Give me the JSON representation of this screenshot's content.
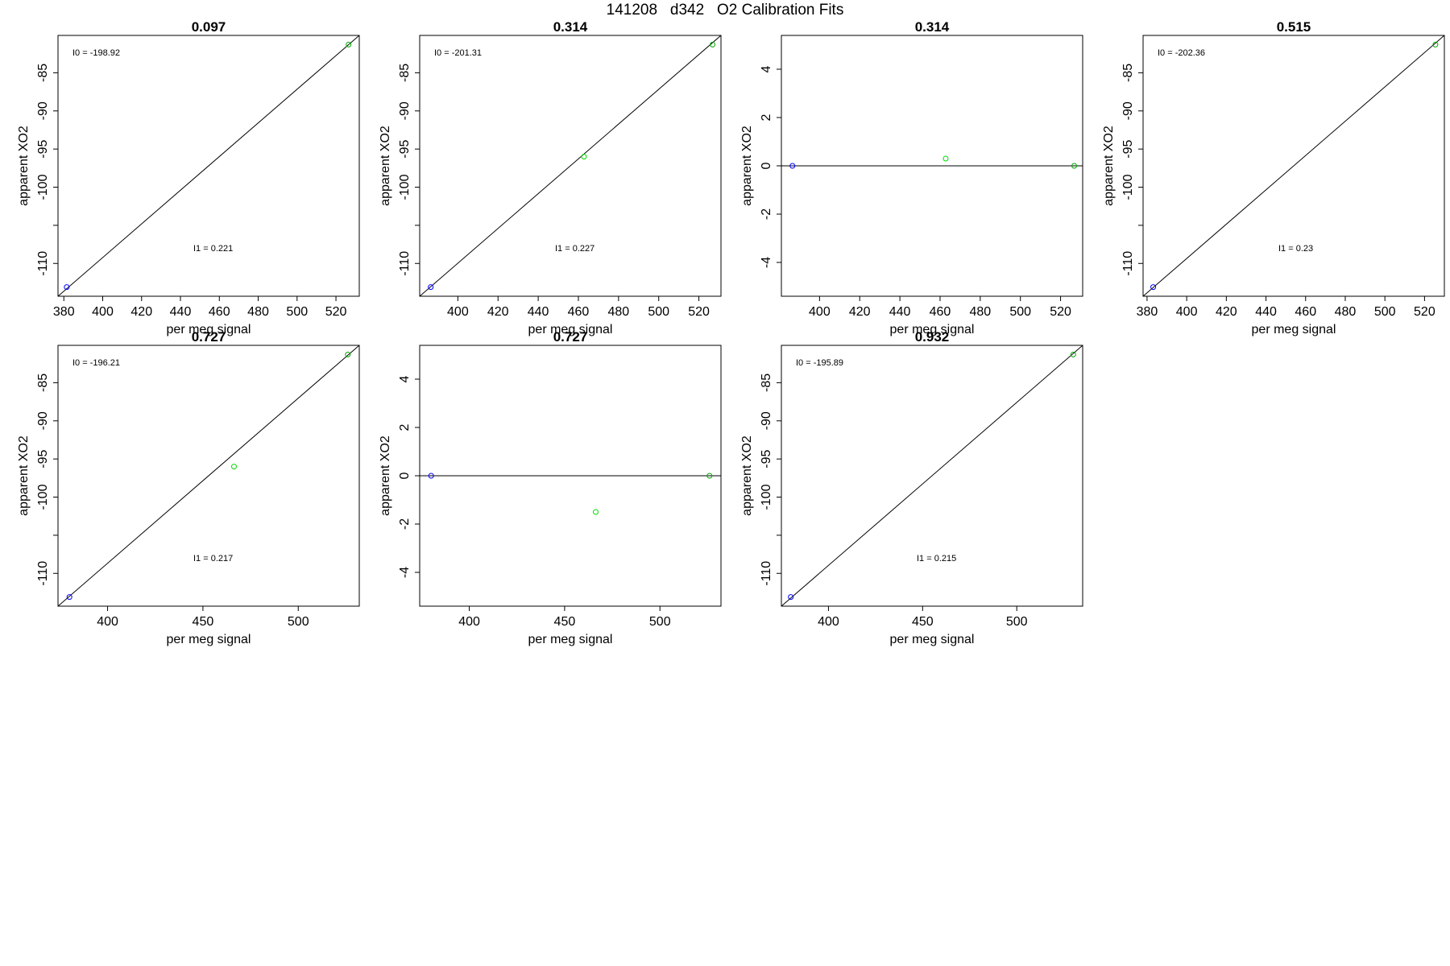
{
  "page_title": "141208   d342   O2 Calibration Fits",
  "chart_data": [
    {
      "type": "scatter",
      "kind": "fit",
      "title": "0.097",
      "xlabel": "per meg signal",
      "ylabel": "apparent XO2",
      "xlim": [
        377,
        532
      ],
      "ylim": [
        -114.3,
        -80.1
      ],
      "xticks": [
        380,
        400,
        420,
        440,
        460,
        480,
        500,
        520
      ],
      "yticks": [
        -85,
        -90,
        -95,
        -100,
        -105,
        -110
      ],
      "ytick_labels": [
        "-85",
        "-90",
        "-95",
        "-100",
        "",
        "-110"
      ],
      "points": [
        {
          "x": 381.5,
          "y": -113.1,
          "color": "#0000ff"
        },
        {
          "x": 526.5,
          "y": -81.3,
          "color": "#00aa00"
        }
      ],
      "line": {
        "from": [
          377,
          -114.3
        ],
        "to": [
          532,
          -80.1
        ]
      },
      "annotations": {
        "i0": "I0 =  -198.92",
        "i1": "I1 =  0.221"
      },
      "grid": false,
      "legend": "none"
    },
    {
      "type": "scatter",
      "kind": "fit",
      "title": "0.314",
      "xlabel": "per meg signal",
      "ylabel": "apparent XO2",
      "xlim": [
        381,
        531
      ],
      "ylim": [
        -114.3,
        -80.1
      ],
      "xticks": [
        400,
        420,
        440,
        460,
        480,
        500,
        520
      ],
      "yticks": [
        -85,
        -90,
        -95,
        -100,
        -105,
        -110
      ],
      "ytick_labels": [
        "-85",
        "-90",
        "-95",
        "-100",
        "",
        "-110"
      ],
      "points": [
        {
          "x": 386.5,
          "y": -113.1,
          "color": "#0000ff"
        },
        {
          "x": 462.8,
          "y": -96.0,
          "color": "#00dd00"
        },
        {
          "x": 526.8,
          "y": -81.3,
          "color": "#00aa00"
        }
      ],
      "line": {
        "from": [
          381,
          -114.3
        ],
        "to": [
          531,
          -80.1
        ]
      },
      "annotations": {
        "i0": "I0 =  -201.31",
        "i1": "I1 =  0.227"
      },
      "grid": false,
      "legend": "none"
    },
    {
      "type": "scatter",
      "kind": "residual",
      "title": "0.314",
      "xlabel": "per meg signal",
      "ylabel": "apparent XO2",
      "xlim": [
        381,
        531
      ],
      "ylim": [
        -5.4,
        5.4
      ],
      "xticks": [
        400,
        420,
        440,
        460,
        480,
        500,
        520
      ],
      "yticks": [
        4,
        2,
        0,
        -2,
        -4
      ],
      "ytick_labels": [
        "4",
        "2",
        "0",
        "-2",
        "-4"
      ],
      "points": [
        {
          "x": 386.5,
          "y": 0.0,
          "color": "#0000ff"
        },
        {
          "x": 462.8,
          "y": 0.3,
          "color": "#00dd00"
        },
        {
          "x": 526.8,
          "y": 0.0,
          "color": "#00aa00"
        }
      ],
      "hline": 0,
      "grid": false,
      "legend": "none"
    },
    {
      "type": "scatter",
      "kind": "fit",
      "title": "0.515",
      "xlabel": "per meg signal",
      "ylabel": "apparent XO2",
      "xlim": [
        378,
        530
      ],
      "ylim": [
        -114.3,
        -80.1
      ],
      "xticks": [
        380,
        400,
        420,
        440,
        460,
        480,
        500,
        520
      ],
      "yticks": [
        -85,
        -90,
        -95,
        -100,
        -105,
        -110
      ],
      "ytick_labels": [
        "-85",
        "-90",
        "-95",
        "-100",
        "",
        "-110"
      ],
      "points": [
        {
          "x": 383.1,
          "y": -113.1,
          "color": "#0000ff"
        },
        {
          "x": 525.5,
          "y": -81.3,
          "color": "#00aa00"
        }
      ],
      "line": {
        "from": [
          378,
          -114.3
        ],
        "to": [
          530,
          -80.1
        ]
      },
      "annotations": {
        "i0": "I0 =  -202.36",
        "i1": "I1 =  0.23"
      },
      "grid": false,
      "legend": "none"
    },
    {
      "type": "scatter",
      "kind": "fit",
      "title": "0.727",
      "xlabel": "per meg signal",
      "ylabel": "apparent XO2",
      "xlim": [
        374,
        532
      ],
      "ylim": [
        -114.3,
        -80.1
      ],
      "xticks": [
        400,
        450,
        500
      ],
      "yticks": [
        -85,
        -90,
        -95,
        -100,
        -105,
        -110
      ],
      "ytick_labels": [
        "-85",
        "-90",
        "-95",
        "-100",
        "",
        "-110"
      ],
      "points": [
        {
          "x": 380.0,
          "y": -113.1,
          "color": "#0000ff"
        },
        {
          "x": 466.3,
          "y": -96.0,
          "color": "#00dd00"
        },
        {
          "x": 526.0,
          "y": -81.3,
          "color": "#00aa00"
        }
      ],
      "line": {
        "from": [
          374,
          -114.3
        ],
        "to": [
          532,
          -80.1
        ]
      },
      "annotations": {
        "i0": "I0 =  -196.21",
        "i1": "I1 =  0.217"
      },
      "grid": false,
      "legend": "none"
    },
    {
      "type": "scatter",
      "kind": "residual",
      "title": "0.727",
      "xlabel": "per meg signal",
      "ylabel": "apparent XO2",
      "xlim": [
        374,
        532
      ],
      "ylim": [
        -5.4,
        5.4
      ],
      "xticks": [
        400,
        450,
        500
      ],
      "yticks": [
        4,
        2,
        0,
        -2,
        -4
      ],
      "ytick_labels": [
        "4",
        "2",
        "0",
        "-2",
        "-4"
      ],
      "points": [
        {
          "x": 380.0,
          "y": 0.0,
          "color": "#0000ff"
        },
        {
          "x": 466.3,
          "y": -1.5,
          "color": "#00dd00"
        },
        {
          "x": 526.0,
          "y": 0.0,
          "color": "#00aa00"
        }
      ],
      "hline": 0,
      "grid": false,
      "legend": "none"
    },
    {
      "type": "scatter",
      "kind": "fit",
      "title": "0.932",
      "xlabel": "per meg signal",
      "ylabel": "apparent XO2",
      "xlim": [
        375,
        535
      ],
      "ylim": [
        -114.3,
        -80.1
      ],
      "xticks": [
        400,
        450,
        500
      ],
      "yticks": [
        -85,
        -90,
        -95,
        -100,
        -105,
        -110
      ],
      "ytick_labels": [
        "-85",
        "-90",
        "-95",
        "-100",
        "",
        "-110"
      ],
      "points": [
        {
          "x": 380.0,
          "y": -113.1,
          "color": "#0000ff"
        },
        {
          "x": 530.0,
          "y": -81.3,
          "color": "#00aa00"
        }
      ],
      "line": {
        "from": [
          375,
          -114.3
        ],
        "to": [
          535,
          -80.1
        ]
      },
      "annotations": {
        "i0": "I0 =  -195.89",
        "i1": "I1 =  0.215"
      },
      "grid": false,
      "legend": "none"
    }
  ]
}
